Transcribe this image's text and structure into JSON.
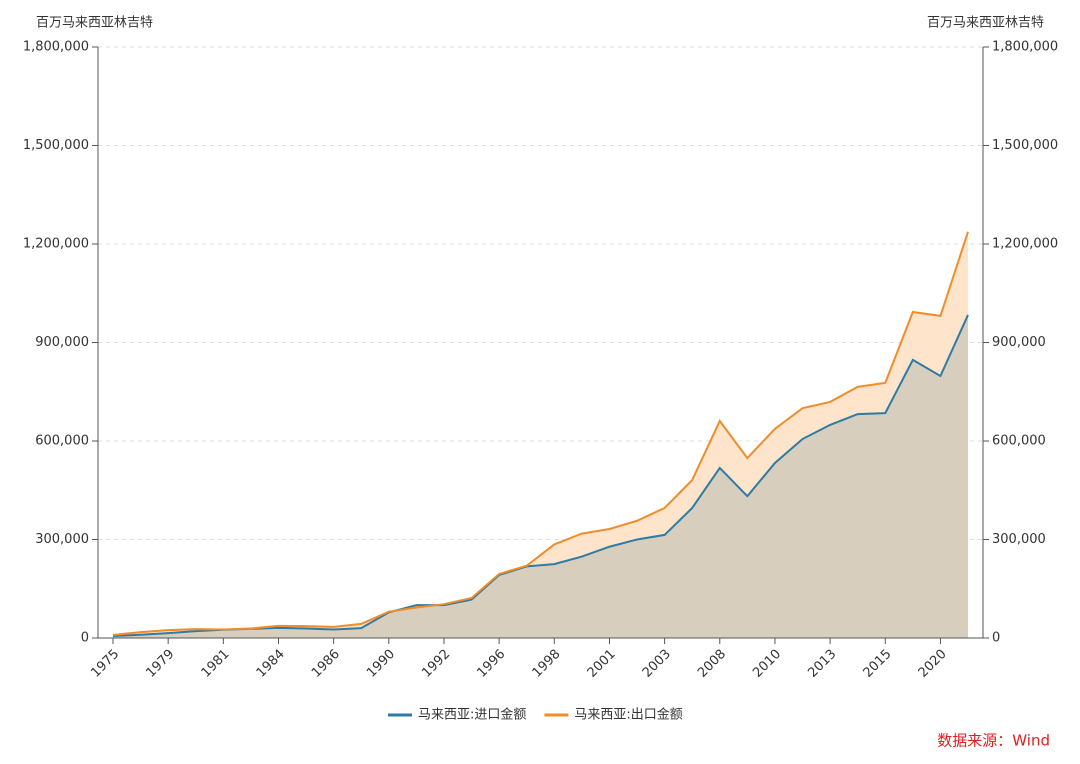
{
  "chart_data": {
    "type": "area",
    "y_label": "百万马来西亚林吉特",
    "y2_label": "百万马来西亚林吉特",
    "source": "数据来源：Wind",
    "categories": [
      "1975",
      null,
      "1979",
      null,
      "1981",
      null,
      "1984",
      null,
      "1986",
      null,
      "1990",
      null,
      "1992",
      null,
      "1996",
      null,
      "1998",
      null,
      "2001",
      null,
      "2003",
      null,
      "2008",
      null,
      "2010",
      null,
      "2013",
      null,
      "2015",
      null,
      "2020",
      null
    ],
    "series": [
      {
        "name": "马来西亚:进口金额",
        "color": "#2e7ba3",
        "fill": "#d7cebd",
        "values": [
          6000,
          10000,
          15000,
          21000,
          25000,
          28000,
          31000,
          29000,
          26000,
          30000,
          78000,
          100000,
          100000,
          117000,
          192000,
          218000,
          225000,
          248000,
          278000,
          300000,
          314000,
          396000,
          518000,
          432000,
          533000,
          606000,
          649000,
          682000,
          685000,
          847000,
          798000,
          984000
        ]
      },
      {
        "name": "马来西亚:出口金额",
        "color": "#ee8d2a",
        "fill": "#fde4cb",
        "values": [
          9000,
          18000,
          24000,
          27000,
          26000,
          29000,
          37000,
          36000,
          34000,
          43000,
          80000,
          93000,
          103000,
          122000,
          195000,
          220000,
          285000,
          318000,
          332000,
          357000,
          396000,
          481000,
          661000,
          548000,
          637000,
          700000,
          719000,
          765000,
          777000,
          993000,
          981000,
          1237000
        ]
      }
    ],
    "ylim": [
      0,
      1800000
    ],
    "yticks": [
      0,
      {
        "value": 300000,
        "label": "300,000"
      },
      {
        "value": 600000,
        "label": "600,000"
      },
      {
        "value": 900000,
        "label": "900,000"
      },
      {
        "value": 1200000,
        "label": "1,200,000"
      },
      {
        "value": 1500000,
        "label": "1,500,000"
      },
      {
        "value": 1800000,
        "label": "1,800,000"
      }
    ],
    "y2lim": [
      0,
      1800000
    ],
    "y2ticks": [
      0,
      {
        "value": 300000,
        "label": "300,000"
      },
      {
        "value": 600000,
        "label": "600,000"
      },
      {
        "value": 900000,
        "label": "900,000"
      },
      {
        "value": 1200000,
        "label": "1,200,000"
      },
      {
        "value": 1500000,
        "label": "1,500,000"
      },
      {
        "value": 1800000,
        "label": "1,800,000"
      }
    ],
    "grid": true,
    "legend": "bottom"
  }
}
